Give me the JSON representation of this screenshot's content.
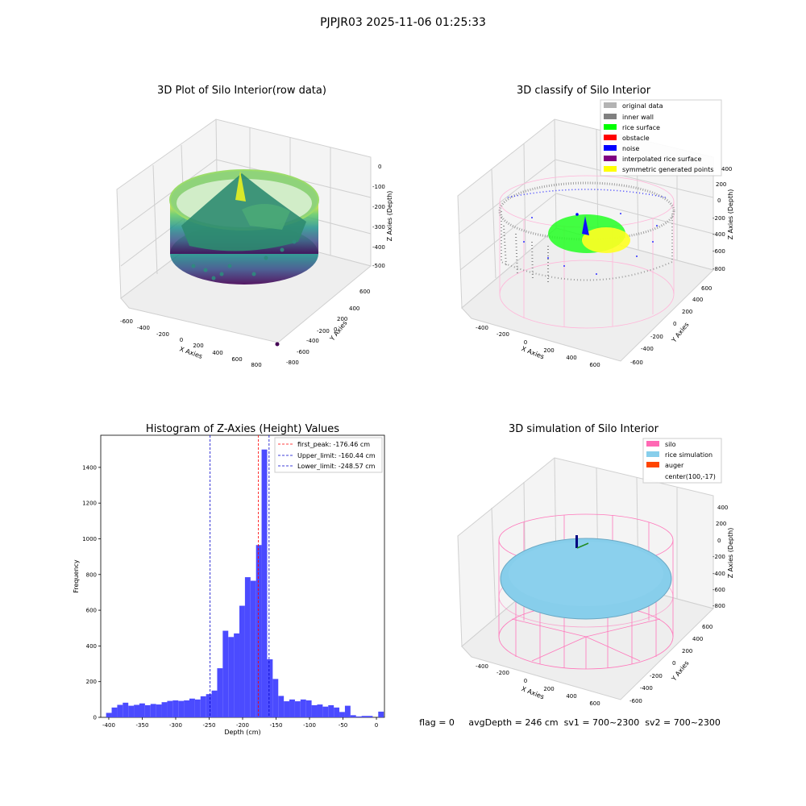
{
  "figure": {
    "suptitle": "PJPJR03 2025-11-06 01:25:33",
    "footer": "flag = 0     avgDepth = 246 cm  sv1 = 700~2300  sv2 = 700~2300"
  },
  "panels": {
    "raw": {
      "title": "3D Plot of Silo Interior(row data)",
      "xlabel": "X Axies",
      "ylabel": "Y Axies",
      "zlabel": "Z Axies (Depth)",
      "xticks": [
        "-600",
        "-400",
        "-200",
        "0",
        "200",
        "400",
        "600",
        "800"
      ],
      "yticks": [
        "600",
        "400",
        "200",
        "0",
        "-200",
        "-400",
        "-600",
        "-800"
      ],
      "zticks": [
        "0",
        "-100",
        "-200",
        "-300",
        "-400",
        "-500"
      ]
    },
    "classify": {
      "title": "3D classify of Silo Interior",
      "xlabel": "X Axies",
      "ylabel": "Y Axies",
      "zlabel": "Z Axies (Depth)",
      "xticks": [
        "-400",
        "-200",
        "0",
        "200",
        "400",
        "600"
      ],
      "yticks": [
        "600",
        "400",
        "200",
        "0",
        "-200",
        "-400",
        "-600"
      ],
      "zticks": [
        "400",
        "200",
        "0",
        "-200",
        "-400",
        "-600",
        "-800"
      ],
      "legend": [
        {
          "label": "original data",
          "color": "#b3b3b3"
        },
        {
          "label": "inner wall",
          "color": "#808080"
        },
        {
          "label": "rice surface",
          "color": "#00ff00"
        },
        {
          "label": "obstacle",
          "color": "#ff0000"
        },
        {
          "label": "noise",
          "color": "#0000ff"
        },
        {
          "label": "interpolated rice surface",
          "color": "#800080"
        },
        {
          "label": "symmetric generated points",
          "color": "#ffff00"
        }
      ]
    },
    "simulation": {
      "title": "3D simulation of Silo Interior",
      "xlabel": "X Axies",
      "ylabel": "Y Axies",
      "zlabel": "Z Axies (Depth)",
      "xticks": [
        "-400",
        "-200",
        "0",
        "200",
        "400",
        "600"
      ],
      "yticks": [
        "600",
        "400",
        "200",
        "0",
        "-200",
        "-400",
        "-600"
      ],
      "zticks": [
        "400",
        "200",
        "0",
        "-200",
        "-400",
        "-600",
        "-800"
      ],
      "legend": [
        {
          "label": "silo",
          "color": "#ff69b4"
        },
        {
          "label": "rice simulation",
          "color": "#87ceeb"
        },
        {
          "label": "auger",
          "color": "#ff4500"
        },
        {
          "label": "center(100,-17)",
          "color": "none"
        }
      ]
    }
  },
  "chart_data": {
    "type": "bar",
    "title": "Histogram of Z-Axies (Height) Values",
    "xlabel": "Depth (cm)",
    "ylabel": "Frequency",
    "xlim": [
      -412,
      12
    ],
    "ylim": [
      0,
      1580
    ],
    "xticks": [
      -400,
      -350,
      -300,
      -250,
      -200,
      -150,
      -100,
      -50,
      0
    ],
    "yticks": [
      0,
      200,
      400,
      600,
      800,
      1000,
      1200,
      1400
    ],
    "bar_color": "#4b4bff",
    "bin_width": 8.3,
    "bin_start": -404,
    "values": [
      25,
      55,
      70,
      82,
      65,
      70,
      78,
      68,
      75,
      72,
      85,
      92,
      95,
      92,
      95,
      105,
      100,
      118,
      130,
      150,
      275,
      485,
      450,
      470,
      625,
      785,
      765,
      965,
      1500,
      325,
      215,
      120,
      90,
      100,
      90,
      100,
      95,
      68,
      72,
      60,
      68,
      55,
      30,
      65,
      12,
      5,
      8,
      8,
      0,
      32
    ],
    "vlines": [
      {
        "label": "first_peak: -176.46 cm",
        "x": -176.46,
        "color": "#ff0000"
      },
      {
        "label": "Upper_limit: -160.44 cm",
        "x": -160.44,
        "color": "#0000cc"
      },
      {
        "label": "Lower_limit: -248.57 cm",
        "x": -248.57,
        "color": "#0000cc"
      }
    ]
  }
}
